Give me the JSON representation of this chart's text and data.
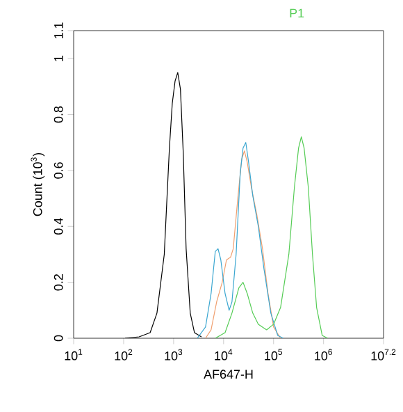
{
  "chart_data": {
    "type": "line",
    "title": "P1",
    "xlabel": "AF647-H",
    "ylabel": "Count (10$^{3}$)",
    "log": "x",
    "xlim": [
      10,
      15848932
    ],
    "xticks": [
      {
        "value": 10,
        "label": "10$^{1}$"
      },
      {
        "value": 100,
        "label": "10$^{2}$"
      },
      {
        "value": 1000,
        "label": "10$^{3}$"
      },
      {
        "value": 10000,
        "label": "10$^{4}$"
      },
      {
        "value": 100000,
        "label": "10$^{5}$"
      },
      {
        "value": 1000000,
        "label": "10$^{6}$"
      },
      {
        "value": 15848932,
        "label": "10$^{7.2}$"
      }
    ],
    "ylim": [
      0,
      1.1
    ],
    "yticks": [
      0,
      0.2,
      0.4,
      0.6,
      0.8,
      1,
      1.1
    ],
    "marker": "none",
    "line_style": "solid",
    "series": [
      {
        "color": "#000000",
        "x": [
          107,
          204,
          339,
          464,
          650,
          727,
          824,
          940,
          1070,
          1210,
          1370,
          1560,
          1780,
          2150,
          2610,
          3600
        ],
        "values": [
          0,
          0.005,
          0.02,
          0.09,
          0.3,
          0.48,
          0.68,
          0.84,
          0.92,
          0.95,
          0.89,
          0.66,
          0.32,
          0.09,
          0.02,
          0.005
        ]
      },
      {
        "color": "#f0a070",
        "x": [
          4350,
          5620,
          7260,
          9380,
          11400,
          13800,
          15600,
          19000,
          23000,
          26100,
          29700,
          35900,
          46400,
          60000,
          77400,
          100000,
          138000
        ],
        "values": [
          0,
          0.03,
          0.13,
          0.2,
          0.28,
          0.29,
          0.32,
          0.49,
          0.64,
          0.67,
          0.63,
          0.54,
          0.44,
          0.32,
          0.16,
          0.04,
          0
        ]
      },
      {
        "color": "#3aa6d0",
        "x": [
          2970,
          4350,
          5620,
          6810,
          7740,
          8800,
          10700,
          12900,
          14700,
          17800,
          21500,
          24500,
          27800,
          31600,
          38300,
          49500,
          64000,
          88000,
          121000,
          156000
        ],
        "values": [
          0,
          0.04,
          0.16,
          0.31,
          0.32,
          0.28,
          0.16,
          0.1,
          0.13,
          0.3,
          0.59,
          0.68,
          0.7,
          0.63,
          0.51,
          0.4,
          0.25,
          0.09,
          0.01,
          0
        ]
      },
      {
        "color": "#55cc55",
        "x": [
          6810,
          10700,
          14700,
          20200,
          24500,
          29700,
          38300,
          49500,
          72600,
          100000,
          138000,
          202000,
          261000,
          316000,
          359000,
          408000,
          495000,
          600000,
          726000,
          938000,
          1210000
        ],
        "values": [
          0,
          0.02,
          0.09,
          0.18,
          0.2,
          0.16,
          0.09,
          0.05,
          0.03,
          0.05,
          0.11,
          0.3,
          0.54,
          0.68,
          0.72,
          0.68,
          0.54,
          0.3,
          0.11,
          0.01,
          0
        ]
      }
    ]
  }
}
